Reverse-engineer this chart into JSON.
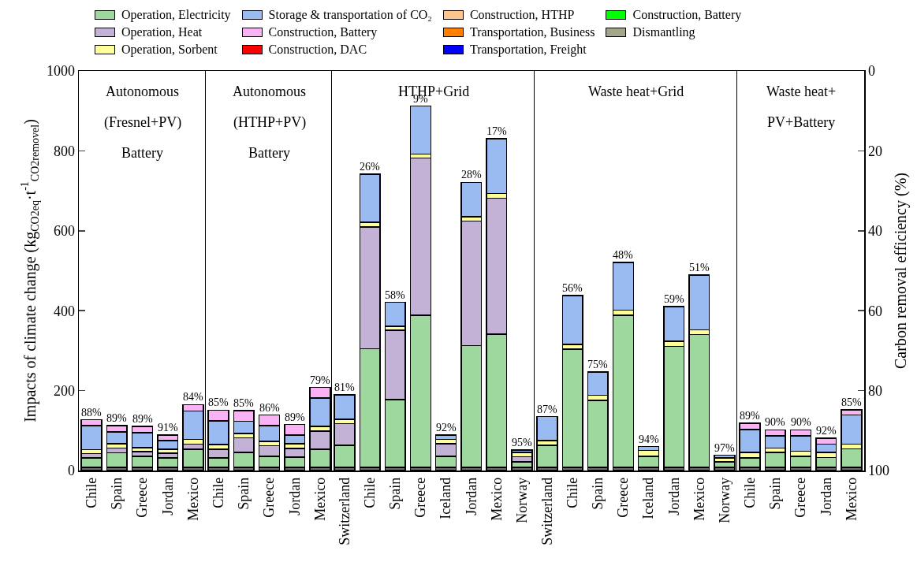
{
  "chart_data": [
    {
      "type": "bar",
      "stacked": true,
      "title": "Autonomous\n(Fresnel+PV)\nBattery",
      "ylabel": "Impacts of climate change (kg$_{CO2eq}$·t$^{-1}$$_{CO2removel}$)",
      "categories": [
        "Chile",
        "Spain",
        "Greece",
        "Jordan",
        "Mexico"
      ],
      "ylim": [
        0,
        1000
      ],
      "yticks": [
        0,
        200,
        400,
        600,
        800,
        1000
      ],
      "legend": "top",
      "grid": false,
      "series": [
        {
          "color": "#6e6e6e",
          "values": [
            8,
            8,
            8,
            8,
            8
          ]
        },
        {
          "name": "Operation, Electricity",
          "color": "#9fd89f",
          "values": [
            24,
            36,
            28,
            24,
            45
          ]
        },
        {
          "name": "Operation, Heat",
          "color": "#c3b1d6",
          "values": [
            10,
            12,
            11,
            11,
            13
          ]
        },
        {
          "name": "Operation, Sorbent",
          "color": "#ffff99",
          "values": [
            10,
            11,
            10,
            10,
            12
          ]
        },
        {
          "name": "Storage & transportation of CO₂",
          "color": "#99bbf2",
          "values": [
            60,
            30,
            38,
            22,
            71
          ]
        },
        {
          "name": "Construction, Battery",
          "color": "#f9b3f5",
          "values": [
            15,
            15,
            15,
            14,
            16
          ]
        },
        {
          "name": "Construction, DAC",
          "color": "#ff0000",
          "values": [
            null,
            null,
            null,
            null,
            null
          ]
        },
        {
          "name": "Construction, HTHP",
          "color": "#ffc38c",
          "values": [
            null,
            null,
            null,
            null,
            null
          ]
        },
        {
          "name": "Transportation, Business",
          "color": "#ff7f00",
          "values": [
            null,
            null,
            null,
            null,
            null
          ]
        },
        {
          "name": "Transportation, Freight",
          "color": "#0000ff",
          "values": [
            null,
            null,
            null,
            null,
            null
          ]
        },
        {
          "name": "Construction, Battery",
          "color": "#00ff00",
          "values": [
            null,
            null,
            null,
            null,
            null
          ]
        },
        {
          "name": "Dismantling",
          "color": "#a5a58a",
          "values": [
            null,
            null,
            null,
            null,
            null
          ]
        }
      ],
      "annotations": [
        {
          "text": "88%",
          "x": "Chile",
          "y": 127
        },
        {
          "text": "89%",
          "x": "Spain",
          "y": 112
        },
        {
          "text": "89%",
          "x": "Greece",
          "y": 110
        },
        {
          "text": "91%",
          "x": "Jordan",
          "y": 89
        },
        {
          "text": "84%",
          "x": "Mexico",
          "y": 165
        }
      ]
    },
    {
      "type": "bar",
      "stacked": true,
      "title": "Autonomous\n(HTHP+PV)\nBattery",
      "categories": [
        "Chile",
        "Spain",
        "Greece",
        "Jordan",
        "Mexico"
      ],
      "ylim": [
        0,
        1000
      ],
      "yticks": [
        0,
        200,
        400,
        600,
        800,
        1000
      ],
      "tick_labels": "x",
      "grid": false,
      "series": [
        {
          "color": "#6e6e6e",
          "values": [
            8,
            8,
            8,
            8,
            8
          ]
        },
        {
          "color": "#9fd89f",
          "values": [
            24,
            37,
            28,
            26,
            45
          ]
        },
        {
          "color": "#c3b1d6",
          "values": [
            21,
            37,
            26,
            21,
            46
          ]
        },
        {
          "color": "#ffff99",
          "values": [
            12,
            11,
            11,
            12,
            11
          ]
        },
        {
          "color": "#99bbf2",
          "values": [
            59,
            30,
            39,
            22,
            71
          ]
        },
        {
          "color": "#f9b3f5",
          "values": [
            27,
            27,
            27,
            26,
            27
          ]
        }
      ],
      "annotations": [
        {
          "text": "85%",
          "x": "Chile",
          "y": 151
        },
        {
          "text": "85%",
          "x": "Spain",
          "y": 150
        },
        {
          "text": "86%",
          "x": "Greece",
          "y": 139
        },
        {
          "text": "89%",
          "x": "Jordan",
          "y": 115
        },
        {
          "text": "79%",
          "x": "Mexico",
          "y": 208
        }
      ]
    },
    {
      "type": "bar",
      "stacked": true,
      "title": "HTHP+Grid",
      "categories": [
        "Switzerland",
        "Chile",
        "Spain",
        "Greece",
        "Iceland",
        "Jordan",
        "Mexico",
        "Norway"
      ],
      "ylim": [
        0,
        1000
      ],
      "yticks": [
        0,
        200,
        400,
        600,
        800,
        1000
      ],
      "tick_labels": "x",
      "grid": false,
      "series": [
        {
          "color": "#6e6e6e",
          "values": [
            8,
            8,
            8,
            8,
            8,
            8,
            8,
            8
          ]
        },
        {
          "color": "#9fd89f",
          "values": [
            55,
            297,
            170,
            381,
            28,
            305,
            333,
            14
          ]
        },
        {
          "color": "#c3b1d6",
          "values": [
            54,
            304,
            173,
            393,
            31,
            311,
            340,
            13
          ]
        },
        {
          "color": "#ffff99",
          "values": [
            11,
            12,
            10,
            10,
            11,
            11,
            12,
            10
          ]
        },
        {
          "color": "#99bbf2",
          "values": [
            61,
            121,
            60,
            120,
            11,
            86,
            137,
            6
          ]
        }
      ],
      "annotations": [
        {
          "text": "81%",
          "x": "Switzerland",
          "y": 189
        },
        {
          "text": "26%",
          "x": "Chile",
          "y": 742
        },
        {
          "text": "58%",
          "x": "Spain",
          "y": 421
        },
        {
          "text": "9%",
          "x": "Greece",
          "y": 912
        },
        {
          "text": "92%",
          "x": "Iceland",
          "y": 89
        },
        {
          "text": "28%",
          "x": "Jordan",
          "y": 721
        },
        {
          "text": "17%",
          "x": "Mexico",
          "y": 830
        },
        {
          "text": "95%",
          "x": "Norway",
          "y": 51
        }
      ]
    },
    {
      "type": "bar",
      "stacked": true,
      "title": "Waste heat+Grid",
      "categories": [
        "Switzerland",
        "Chile",
        "Spain",
        "Greece",
        "Iceland",
        "Jordan",
        "Mexico",
        "Norway"
      ],
      "ylim": [
        0,
        1000
      ],
      "yticks": [
        0,
        200,
        400,
        600,
        800,
        1000
      ],
      "tick_labels": "x",
      "grid": false,
      "series": [
        {
          "color": "#6e6e6e",
          "values": [
            8,
            8,
            8,
            8,
            8,
            8,
            8,
            8
          ]
        },
        {
          "color": "#9fd89f",
          "values": [
            55,
            296,
            168,
            381,
            28,
            303,
            332,
            14
          ]
        },
        {
          "color": "#ffff99",
          "values": [
            12,
            12,
            12,
            12,
            14,
            12,
            12,
            10
          ]
        },
        {
          "color": "#99bbf2",
          "values": [
            60,
            122,
            59,
            120,
            10,
            87,
            137,
            6
          ]
        }
      ],
      "annotations": [
        {
          "text": "87%",
          "x": "Switzerland",
          "y": 135
        },
        {
          "text": "56%",
          "x": "Chile",
          "y": 438
        },
        {
          "text": "75%",
          "x": "Spain",
          "y": 247
        },
        {
          "text": "48%",
          "x": "Greece",
          "y": 521
        },
        {
          "text": "94%",
          "x": "Iceland",
          "y": 60
        },
        {
          "text": "59%",
          "x": "Jordan",
          "y": 410
        },
        {
          "text": "51%",
          "x": "Mexico",
          "y": 489
        },
        {
          "text": "97%",
          "x": "Norway",
          "y": 38
        }
      ]
    },
    {
      "type": "bar",
      "stacked": true,
      "title": "Waste heat+\nPV+Battery",
      "y2label": "Carbon removal efficiency (%)",
      "categories": [
        "Chile",
        "Spain",
        "Greece",
        "Jordan",
        "Mexico"
      ],
      "ylim": [
        0,
        1000
      ],
      "y2lim": [
        100,
        0
      ],
      "y2ticks": [
        0,
        20,
        40,
        60,
        80,
        100
      ],
      "grid": false,
      "series": [
        {
          "color": "#6e6e6e",
          "values": [
            8,
            8,
            8,
            8,
            8
          ]
        },
        {
          "color": "#9fd89f",
          "values": [
            24,
            37,
            28,
            25,
            46
          ]
        },
        {
          "color": "#ffff99",
          "values": [
            13,
            11,
            12,
            12,
            12
          ]
        },
        {
          "color": "#99bbf2",
          "values": [
            58,
            31,
            39,
            21,
            73
          ]
        },
        {
          "color": "#f9b3f5",
          "values": [
            15,
            15,
            15,
            15,
            13
          ]
        }
      ],
      "annotations": [
        {
          "text": "89%",
          "x": "Chile",
          "y": 118
        },
        {
          "text": "90%",
          "x": "Spain",
          "y": 102
        },
        {
          "text": "90%",
          "x": "Greece",
          "y": 102
        },
        {
          "text": "92%",
          "x": "Jordan",
          "y": 81
        },
        {
          "text": "85%",
          "x": "Mexico",
          "y": 152
        }
      ]
    }
  ]
}
